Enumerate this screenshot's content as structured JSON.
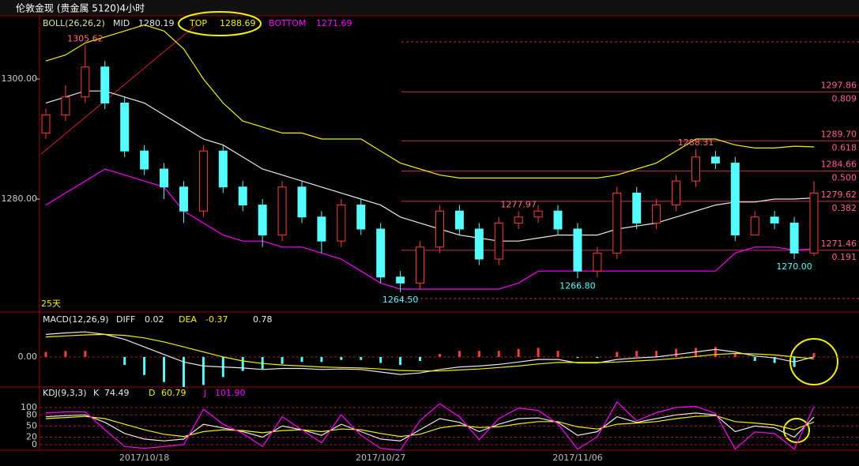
{
  "chart_data": [
    {
      "type": "candlestick",
      "title": "伦敦金现 (贵金属 5120)4小时",
      "indicator": "BOLL(26,26,2)",
      "period_label": "25天",
      "up_color": "#ff3c3c",
      "down_color": "#54fcfc",
      "ylim": [
        1261.18,
        1310.53
      ],
      "yticks": [
        {
          "value": 1300,
          "label": "1300.00"
        },
        {
          "value": 1280,
          "label": "1280.00"
        }
      ],
      "open": [
        1291,
        1294,
        1297,
        1302,
        1296,
        1288,
        1285,
        1282,
        1278,
        1288,
        1282,
        1279,
        1274,
        1282,
        1277,
        1273,
        1279,
        1275,
        1267,
        1266,
        1272,
        1278,
        1275,
        1270,
        1276,
        1277,
        1278,
        1275,
        1268,
        1271,
        1281,
        1276,
        1279,
        1283,
        1287,
        1286,
        1274,
        1277,
        1276,
        1271
      ],
      "high": [
        1295,
        1299,
        1305.62,
        1303,
        1297,
        1289,
        1286,
        1283,
        1289,
        1289,
        1283,
        1280,
        1283,
        1283,
        1278,
        1280,
        1280,
        1276,
        1268,
        1273,
        1279,
        1279,
        1276,
        1277,
        1277.97,
        1279,
        1279,
        1276,
        1272,
        1282,
        1282,
        1280,
        1284,
        1288.31,
        1288,
        1287,
        1278,
        1278,
        1277,
        1283
      ],
      "low": [
        1290,
        1293,
        1296,
        1295,
        1287,
        1284,
        1280,
        1276,
        1277,
        1281,
        1278,
        1272,
        1273,
        1276,
        1271,
        1272,
        1274,
        1266,
        1264.5,
        1265,
        1271,
        1274,
        1269,
        1269,
        1275,
        1276,
        1274,
        1266.8,
        1267,
        1270,
        1275,
        1275,
        1278,
        1282,
        1285,
        1273,
        1274,
        1275,
        1270,
        1270.5
      ],
      "close": [
        1294,
        1297,
        1302,
        1296,
        1288,
        1285,
        1282,
        1278,
        1288,
        1282,
        1279,
        1274,
        1282,
        1277,
        1273,
        1279,
        1275,
        1267,
        1266,
        1272,
        1278,
        1275,
        1270,
        1276,
        1277,
        1278,
        1275,
        1268,
        1271,
        1281,
        1276,
        1279,
        1283,
        1287,
        1286,
        1274,
        1277,
        1276,
        1271,
        1281
      ],
      "high_labels": [
        null,
        null,
        "1305.62",
        null,
        null,
        null,
        null,
        null,
        null,
        null,
        null,
        null,
        null,
        null,
        null,
        null,
        null,
        null,
        null,
        null,
        null,
        null,
        null,
        null,
        "1277.97",
        null,
        null,
        null,
        null,
        null,
        null,
        null,
        null,
        "1288.31",
        null,
        null,
        null,
        null,
        null,
        null
      ],
      "low_labels": [
        null,
        null,
        null,
        null,
        null,
        null,
        null,
        null,
        null,
        null,
        null,
        null,
        null,
        null,
        null,
        null,
        null,
        null,
        "1264.50",
        null,
        null,
        null,
        null,
        null,
        null,
        null,
        null,
        "1266.80",
        null,
        null,
        null,
        null,
        null,
        null,
        null,
        null,
        null,
        null,
        "1270.00",
        null
      ],
      "series": [
        {
          "name": "MID",
          "color": "#e8e8e8",
          "values": [
            1296,
            1297,
            1298,
            1298,
            1297,
            1296,
            1294,
            1292,
            1290,
            1289,
            1287,
            1285,
            1284,
            1283,
            1282,
            1281,
            1280,
            1279,
            1277,
            1276,
            1275,
            1274,
            1273.5,
            1273,
            1273,
            1273.5,
            1274,
            1274,
            1274,
            1275,
            1275.5,
            1276,
            1277,
            1278,
            1279,
            1279.5,
            1279.5,
            1280,
            1280,
            1280.19
          ]
        },
        {
          "name": "TOP",
          "color": "#f0f000",
          "values": [
            1303,
            1304,
            1306,
            1307,
            1308,
            1309,
            1308,
            1305,
            1300,
            1296,
            1293,
            1292,
            1291,
            1291,
            1290,
            1290,
            1290,
            1288,
            1286,
            1285,
            1284,
            1283.5,
            1283.5,
            1283.5,
            1283.5,
            1283.5,
            1283.5,
            1283.5,
            1283.5,
            1284,
            1285,
            1286,
            1288,
            1290,
            1290,
            1289,
            1288.5,
            1288.5,
            1288.8,
            1288.69
          ]
        },
        {
          "name": "BOTTOM",
          "color": "#ff00ff",
          "values": [
            1279,
            1281,
            1283,
            1285,
            1284,
            1283,
            1282,
            1278,
            1276,
            1274,
            1273,
            1273,
            1272,
            1272,
            1271,
            1270,
            1268,
            1266,
            1265,
            1265,
            1265,
            1265,
            1265,
            1265,
            1266,
            1268,
            1268,
            1268,
            1268,
            1268,
            1268,
            1268,
            1268,
            1268,
            1268,
            1271,
            1272,
            1272,
            1271.5,
            1271.69
          ]
        }
      ],
      "fib_levels": [
        {
          "value": 1297.86,
          "label": "1297.86",
          "ratio": "0.809"
        },
        {
          "value": 1289.7,
          "label": "1289.70",
          "ratio": "0.618"
        },
        {
          "value": 1284.66,
          "label": "1284.66",
          "ratio": "0.500"
        },
        {
          "value": 1279.62,
          "label": "1279.62",
          "ratio": "0.382"
        },
        {
          "value": 1271.46,
          "label": "1271.46",
          "ratio": "0.191"
        }
      ]
    },
    {
      "type": "macd",
      "indicator": "MACD(12,26,9)",
      "ylim": [
        -6,
        8.5
      ],
      "yticks": [
        {
          "value": 0,
          "label": "0.00"
        }
      ],
      "up_color": "#ff3c3c",
      "down_color": "#54fcfc",
      "values": [
        1,
        1.2,
        1.2,
        0,
        -1.6,
        -3.6,
        -5,
        -6,
        -5.6,
        -4,
        -2.8,
        -2.4,
        -1.4,
        -1,
        -1,
        -0.6,
        -0.6,
        -1.2,
        -1.6,
        -0.8,
        0.6,
        1.2,
        1.2,
        1.2,
        1.6,
        1.8,
        1.2,
        -0.2,
        -0.2,
        1,
        1.2,
        1.2,
        1.6,
        1.8,
        2,
        0.6,
        -0.8,
        -1.2,
        -2,
        0.78
      ],
      "series": [
        {
          "name": "DIFF",
          "color": "#e8e8e8",
          "values": [
            4.5,
            4.8,
            5,
            4.5,
            3.5,
            2,
            0.5,
            -1,
            -1.8,
            -2,
            -2.2,
            -2.5,
            -2.3,
            -2.3,
            -2.5,
            -2.4,
            -2.5,
            -3,
            -3.5,
            -3.2,
            -2.5,
            -2,
            -1.8,
            -1.5,
            -1,
            -0.5,
            -0.5,
            -1.2,
            -1.2,
            -0.5,
            -0.2,
            0,
            0.5,
            1,
            1.5,
            1,
            0.2,
            -0.2,
            -1,
            0.02
          ]
        },
        {
          "name": "DEA",
          "color": "#f0f000",
          "values": [
            4,
            4.2,
            4.4,
            4.5,
            4.3,
            3.8,
            3,
            2,
            1,
            0,
            -0.8,
            -1.3,
            -1.6,
            -1.8,
            -2,
            -2.1,
            -2.2,
            -2.4,
            -2.7,
            -2.8,
            -2.8,
            -2.6,
            -2.4,
            -2.1,
            -1.8,
            -1.4,
            -1.1,
            -1.1,
            -1.1,
            -1,
            -0.8,
            -0.6,
            -0.3,
            0.1,
            0.5,
            0.7,
            0.6,
            0.4,
            0,
            -0.37
          ]
        }
      ]
    },
    {
      "type": "line",
      "indicator": "KDJ(9,3,3)",
      "ylim": [
        -15,
        155
      ],
      "yticks": [
        100,
        80,
        50,
        20,
        0
      ],
      "categories": [
        null,
        null,
        null,
        null,
        null,
        "2017/10/18",
        null,
        null,
        null,
        null,
        null,
        null,
        null,
        null,
        null,
        null,
        null,
        "2017/10/27",
        null,
        null,
        null,
        null,
        null,
        null,
        null,
        null,
        null,
        "2017/11/06",
        null,
        null,
        null,
        null,
        null,
        null,
        null,
        null,
        null,
        null,
        null,
        null
      ],
      "series": [
        {
          "name": "K",
          "color": "#e8e8e8",
          "values": [
            75,
            78,
            80,
            60,
            30,
            15,
            10,
            15,
            55,
            45,
            35,
            20,
            50,
            40,
            25,
            55,
            35,
            15,
            10,
            40,
            70,
            60,
            35,
            55,
            70,
            72,
            60,
            25,
            35,
            75,
            60,
            70,
            80,
            85,
            80,
            35,
            50,
            45,
            20,
            74.49
          ]
        },
        {
          "name": "D",
          "color": "#f0f000",
          "values": [
            70,
            73,
            76,
            70,
            55,
            40,
            28,
            22,
            35,
            40,
            38,
            32,
            38,
            40,
            35,
            42,
            40,
            30,
            22,
            28,
            45,
            52,
            46,
            48,
            56,
            62,
            62,
            48,
            42,
            55,
            58,
            62,
            70,
            76,
            78,
            62,
            58,
            53,
            40,
            60.79
          ]
        },
        {
          "name": "J",
          "color": "#ff00ff",
          "values": [
            85,
            88,
            88,
            40,
            -5,
            -10,
            -5,
            0,
            95,
            55,
            30,
            -5,
            75,
            40,
            5,
            80,
            25,
            -10,
            -15,
            65,
            110,
            75,
            13,
            70,
            98,
            92,
            56,
            -12,
            21,
            115,
            64,
            86,
            100,
            103,
            84,
            -12,
            34,
            30,
            -12,
            101.9
          ],
          "value_labels": [
            null,
            null,
            null,
            null,
            null,
            null,
            null,
            null,
            null,
            null,
            null,
            null,
            null,
            null,
            null,
            null,
            null,
            null,
            null,
            null,
            null,
            null,
            null,
            null,
            null,
            null,
            null,
            null,
            null,
            null,
            null,
            null,
            null,
            null,
            null,
            null,
            null,
            null,
            null,
            "101.90"
          ]
        }
      ]
    }
  ]
}
